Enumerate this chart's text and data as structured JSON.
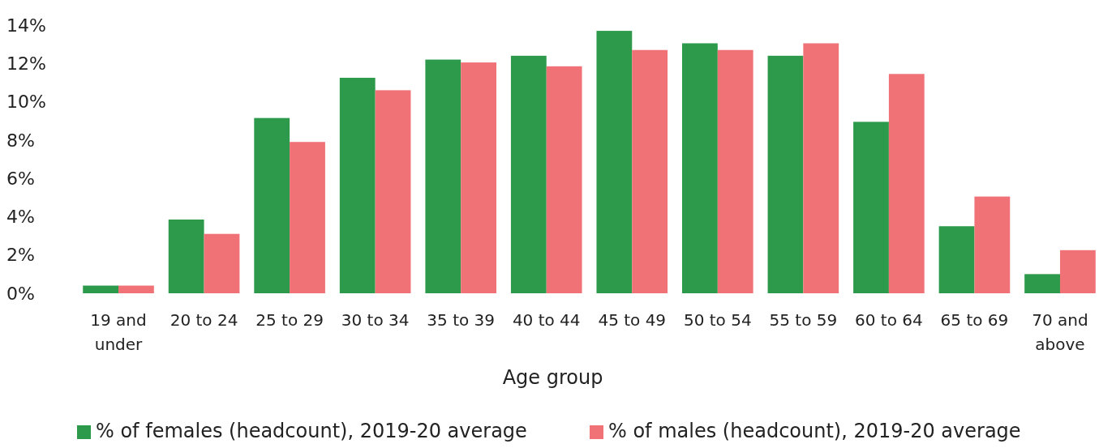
{
  "chart_data": {
    "type": "bar",
    "xlabel": "Age group",
    "categories": [
      "19 and under",
      "20 to 24",
      "25 to 29",
      "30 to 34",
      "35 to 39",
      "40 to 44",
      "45 to 49",
      "50 to 54",
      "55 to 59",
      "60 to 64",
      "65 to 69",
      "70 and above"
    ],
    "series": [
      {
        "name": "% of females (headcount), 2019-20 average",
        "color": "#2c9a4a",
        "values": [
          0.4,
          3.85,
          9.15,
          11.25,
          12.2,
          12.4,
          13.7,
          13.05,
          12.4,
          8.95,
          3.5,
          1.0
        ]
      },
      {
        "name": "% of males (headcount), 2019-20 average",
        "color": "#f07176",
        "values": [
          0.4,
          3.1,
          7.9,
          10.6,
          12.05,
          11.85,
          12.7,
          12.7,
          13.05,
          11.45,
          5.05,
          2.25
        ]
      }
    ],
    "ylim": [
      0,
      14
    ],
    "yticks": [
      {
        "value": 0,
        "label": "0%"
      },
      {
        "value": 2,
        "label": "2%"
      },
      {
        "value": 4,
        "label": "4%"
      },
      {
        "value": 6,
        "label": "6%"
      },
      {
        "value": 8,
        "label": "8%"
      },
      {
        "value": 10,
        "label": "10%"
      },
      {
        "value": 12,
        "label": "12%"
      },
      {
        "value": 14,
        "label": "14%"
      }
    ],
    "grid": false,
    "legend": "bottom"
  }
}
